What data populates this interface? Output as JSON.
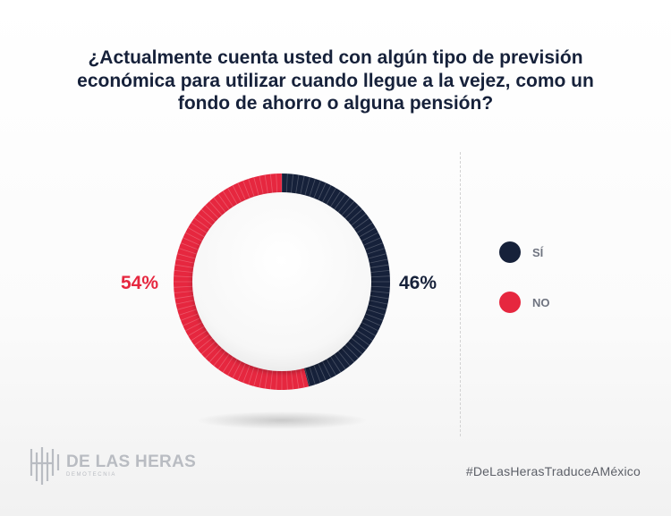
{
  "chart_data": {
    "type": "pie",
    "title_lines": [
      "¿Actualmente cuenta usted con algún tipo de previsión",
      "económica para utilizar cuando llegue a la vejez, como un",
      "fondo de ahorro o alguna pensión?"
    ],
    "series": [
      {
        "name": "SÍ",
        "value": 46,
        "label": "46%",
        "color": "#16213a"
      },
      {
        "name": "NO",
        "value": 54,
        "label": "54%",
        "color": "#e6273f"
      }
    ]
  },
  "legend": {
    "position": "right"
  },
  "brand": {
    "name": "DE LAS HERAS",
    "tagline": "DEMOTECNIA",
    "hashtag": "#DeLasHerasTraduceAMéxico",
    "logo_color": "#b9bcc2"
  }
}
